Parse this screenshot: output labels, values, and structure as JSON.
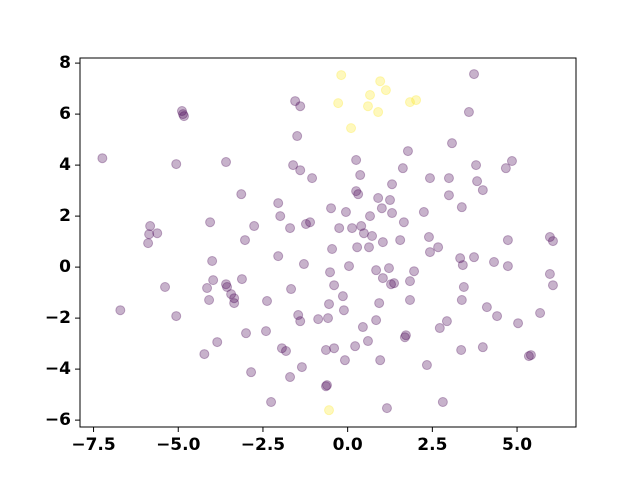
{
  "chart_data": {
    "type": "scatter",
    "xlim": [
      -7.9,
      6.74
    ],
    "ylim": [
      -6.27,
      8.2
    ],
    "xticks": [
      {
        "value": -7.5,
        "label": "−7.5"
      },
      {
        "value": -5,
        "label": "−5.0"
      },
      {
        "value": -2.5,
        "label": "−2.5"
      },
      {
        "value": 0,
        "label": "0.0"
      },
      2.5,
      {
        "value": 5,
        "label": "5.0"
      }
    ],
    "yticks": [
      {
        "value": -6,
        "label": "−6"
      },
      {
        "value": -4,
        "label": "−4"
      },
      {
        "value": -2,
        "label": "−2"
      },
      0,
      2,
      4,
      6,
      8
    ],
    "opacity": 0.3,
    "series": [
      {
        "color": "#440154",
        "x": [
          3.73,
          -1.55,
          -1.4,
          3.58,
          -4.89,
          -4.86,
          -4.83,
          -7.24,
          -1.49,
          1.78,
          3.08,
          3.79,
          4.85,
          4.67,
          0.25,
          0.37,
          -1.61,
          -1.4,
          -3.59,
          1.63,
          -1.05,
          2.43,
          2.99,
          3.82,
          3.99,
          -5.06,
          0.25,
          0.31,
          1.31,
          -3.14,
          0.9,
          2.99,
          3.37,
          -2.05,
          -1.11,
          -1.23,
          -0.49,
          -0.05,
          0.66,
          1.01,
          1.25,
          1.31,
          1.66,
          2.25,
          -1.99,
          -5.83,
          -5.62,
          -2.76,
          -4.06,
          -3.03,
          -1.7,
          0.4,
          0.13,
          -0.25,
          0.48,
          0.72,
          1.04,
          1.55,
          2.4,
          2.67,
          4.73,
          5.97,
          6.06,
          -5.86,
          -5.89,
          -2.05,
          -4.0,
          -0.46,
          0.28,
          0.63,
          2.43,
          3.32,
          3.73,
          4.32,
          4.73,
          -1.29,
          0.04,
          -0.52,
          3.4,
          0.84,
          1.96,
          1.22,
          -3.97,
          -3.59,
          -3.12,
          5.97,
          6.06,
          -6.71,
          -5.39,
          -4.15,
          -3.56,
          -3.44,
          -1.67,
          -0.4,
          1.04,
          1.28,
          1.84,
          3.43,
          3.37,
          1.37,
          -4.09,
          -3.35,
          -3.35,
          -2.38,
          -1.46,
          -0.87,
          -0.14,
          -0.55,
          -0.11,
          0.93,
          1.84,
          4.11,
          4.41,
          5.03,
          5.68,
          -5.06,
          -0.58,
          0.84,
          2.93,
          2.72,
          -3.0,
          -2.41,
          -1.4,
          0.45,
          1.72,
          1.69,
          -3.85,
          -1.94,
          -1.82,
          -0.64,
          -0.4,
          0.22,
          0.6,
          3.35,
          -4.23,
          -1.35,
          -0.08,
          0.96,
          2.34,
          3.99,
          5.35,
          5.41,
          -2.85,
          -1.7,
          -0.61,
          -0.64,
          -2.26,
          1.16,
          2.81
        ],
        "values": [
          7.57,
          6.51,
          6.31,
          6.08,
          6.12,
          6.0,
          5.92,
          4.27,
          5.14,
          4.55,
          4.86,
          4.0,
          4.16,
          3.88,
          4.2,
          3.61,
          4.0,
          3.8,
          4.12,
          3.88,
          3.49,
          3.49,
          3.49,
          3.37,
          3.02,
          4.04,
          2.98,
          2.86,
          3.25,
          2.86,
          2.71,
          2.82,
          2.35,
          2.51,
          1.76,
          1.69,
          2.31,
          2.16,
          2.0,
          2.31,
          2.63,
          2.12,
          1.76,
          2.16,
          2.0,
          1.61,
          1.33,
          1.61,
          1.76,
          1.06,
          1.53,
          1.61,
          1.53,
          1.53,
          1.33,
          1.22,
          0.98,
          1.06,
          1.18,
          0.78,
          1.06,
          1.18,
          1.02,
          1.29,
          0.94,
          0.43,
          0.24,
          0.71,
          0.78,
          0.78,
          0.59,
          0.35,
          0.39,
          0.2,
          0.04,
          0.12,
          0.04,
          -0.2,
          0.08,
          -0.12,
          -0.16,
          -0.04,
          -0.51,
          -0.67,
          -0.47,
          -0.27,
          -0.71,
          -1.69,
          -0.78,
          -0.82,
          -0.78,
          -1.06,
          -0.86,
          -0.71,
          -0.43,
          -0.67,
          -0.55,
          -0.78,
          -1.29,
          -0.63,
          -1.29,
          -1.22,
          -1.41,
          -1.33,
          -1.88,
          -2.04,
          -1.14,
          -1.45,
          -1.69,
          -1.41,
          -1.29,
          -1.57,
          -1.92,
          -2.2,
          -1.8,
          -1.92,
          -2.0,
          -2.08,
          -2.12,
          -2.39,
          -2.59,
          -2.51,
          -2.12,
          -2.35,
          -2.67,
          -2.75,
          -2.94,
          -3.18,
          -3.29,
          -3.25,
          -3.18,
          -3.1,
          -2.9,
          -3.25,
          -3.41,
          -3.92,
          -3.65,
          -3.65,
          -3.84,
          -3.14,
          -3.49,
          -3.45,
          -4.12,
          -4.31,
          -4.63,
          -4.67,
          -5.29,
          -5.53,
          -5.29
        ]
      },
      {
        "color": "#fde725",
        "x": [
          -0.19,
          0.96,
          1.13,
          0.66,
          -0.28,
          0.6,
          1.84,
          2.02,
          0.9,
          0.1,
          -0.55
        ],
        "values": [
          7.53,
          7.29,
          6.94,
          6.75,
          6.43,
          6.31,
          6.47,
          6.55,
          6.08,
          5.45,
          -5.61
        ]
      }
    ]
  }
}
